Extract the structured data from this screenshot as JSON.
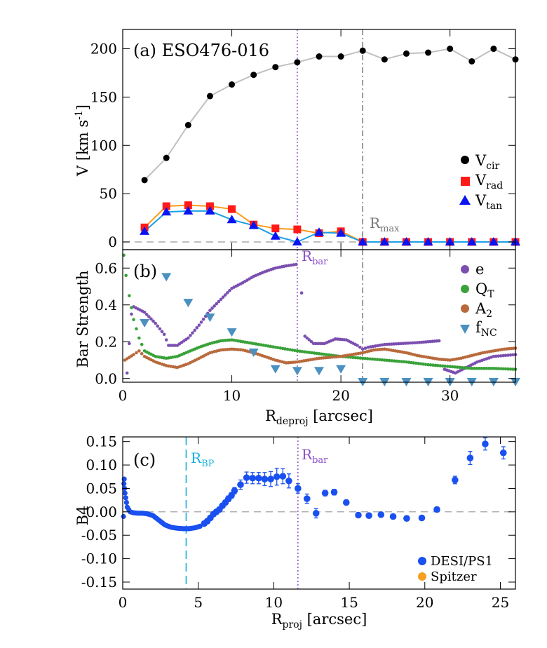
{
  "colors": {
    "vcir": "#000000",
    "vcir_line": "#c0c0c0",
    "vrad": "#ff1a1a",
    "vrad_line": "#ff9a1a",
    "vtan": "#0a14f0",
    "vtan_line": "#1aa0e6",
    "e": "#7b4fb0",
    "qt": "#3aa23a",
    "a2": "#b86a3c",
    "fnc": "#4a90c0",
    "rmax": "#777777",
    "rbar": "#8a4fc8",
    "rbp": "#18b0e0",
    "zero": "#999999",
    "desi": "#1a50f0",
    "spitzer": "#f5a020"
  },
  "chart_data": [
    {
      "type": "line",
      "panel_label": "(a) ESO476-016",
      "ylabel": "V [km s",
      "ylabel_sup": "-1",
      "ylabel_close": "]",
      "xlim": [
        0,
        36
      ],
      "ylim": [
        -8,
        220
      ],
      "yticks": [
        0,
        50,
        100,
        150,
        200
      ],
      "xticks": [
        0,
        10,
        20,
        30
      ],
      "series": [
        {
          "name": "V",
          "sub": "cir",
          "key": "vcir",
          "marker": "circle",
          "x": [
            2,
            4,
            6,
            8,
            10,
            12,
            14,
            16,
            18,
            20,
            22,
            24,
            26,
            28,
            30,
            32,
            34,
            36
          ],
          "values": [
            64,
            87,
            121,
            151,
            163,
            173,
            181,
            186,
            192,
            192,
            198,
            189,
            195,
            196,
            200,
            187,
            200,
            189
          ]
        },
        {
          "name": "V",
          "sub": "rad",
          "key": "vrad",
          "marker": "square",
          "x": [
            2,
            4,
            6,
            8,
            10,
            12,
            14,
            16,
            18,
            20,
            22,
            24,
            26,
            28,
            30,
            32,
            34,
            36
          ],
          "values": [
            15,
            37,
            38,
            37,
            34,
            18,
            14,
            13,
            9,
            11,
            0,
            0,
            0,
            0,
            0,
            0,
            0,
            0
          ]
        },
        {
          "name": "V",
          "sub": "tan",
          "key": "vtan",
          "marker": "triangle",
          "x": [
            2,
            4,
            6,
            8,
            10,
            12,
            14,
            16,
            18,
            20,
            22,
            24,
            26,
            28,
            30,
            32,
            34,
            36
          ],
          "values": [
            11,
            31,
            32,
            32,
            23,
            17,
            6,
            0,
            10,
            9,
            0,
            0,
            0,
            0,
            0,
            0,
            0,
            0
          ]
        }
      ],
      "annotations": {
        "rmax_label": "R",
        "rmax_sub": "max",
        "rmax_x": 22,
        "rbar_x": 16
      }
    },
    {
      "type": "scatter",
      "panel_label": "(b)",
      "ylabel": "Bar Strength",
      "xlabel": "R",
      "xlabel_sub": "deproj",
      "xlabel_tail": " [arcsec]",
      "xlim": [
        0,
        36
      ],
      "ylim": [
        -0.02,
        0.7
      ],
      "yticks": [
        0.0,
        0.2,
        0.4,
        0.6
      ],
      "yticklabels": [
        "0.0",
        "0.2",
        "0.4",
        "0.6"
      ],
      "xticks": [
        0,
        10,
        20,
        30
      ],
      "xticklabels": [
        "0",
        "10",
        "20",
        "30"
      ],
      "series": [
        {
          "name": "e",
          "sub": "",
          "key": "e",
          "curve": [
            [
              0.4,
              0.03
            ],
            [
              0.8,
              0.35
            ],
            [
              1,
              0.39
            ],
            [
              2,
              0.36
            ],
            [
              3,
              0.3
            ],
            [
              3.8,
              0.24
            ],
            [
              4.2,
              0.18
            ],
            [
              5,
              0.18
            ],
            [
              6,
              0.22
            ],
            [
              7,
              0.29
            ],
            [
              8,
              0.37
            ],
            [
              9,
              0.43
            ],
            [
              10,
              0.49
            ],
            [
              11,
              0.52
            ],
            [
              12,
              0.555
            ],
            [
              13,
              0.58
            ],
            [
              14,
              0.6
            ],
            [
              15,
              0.612
            ],
            [
              15.9,
              0.62
            ]
          ],
          "curve2": [
            [
              16.4,
              0.465
            ]
          ],
          "curve3": [
            [
              16.7,
              0.23
            ],
            [
              17.5,
              0.19
            ],
            [
              18.5,
              0.19
            ],
            [
              19.5,
              0.215
            ],
            [
              20.5,
              0.21
            ],
            [
              21.5,
              0.18
            ],
            [
              22,
              0.16
            ],
            [
              22.5,
              0.17
            ],
            [
              24,
              0.185
            ],
            [
              25.5,
              0.19
            ],
            [
              27,
              0.195
            ],
            [
              28,
              0.2
            ],
            [
              29,
              0.205
            ]
          ],
          "curve4": [
            [
              29.5,
              0.05
            ],
            [
              30.5,
              0.03
            ],
            [
              31.5,
              0.06
            ],
            [
              32.5,
              0.09
            ],
            [
              34,
              0.12
            ],
            [
              36,
              0.13
            ]
          ]
        },
        {
          "name": "Q",
          "sub": "T",
          "key": "qt",
          "curve": [
            [
              0.1,
              0.67
            ],
            [
              0.3,
              0.56
            ],
            [
              0.6,
              0.45
            ],
            [
              1,
              0.32
            ],
            [
              1.5,
              0.22
            ],
            [
              2,
              0.15
            ],
            [
              3,
              0.12
            ],
            [
              4,
              0.11
            ],
            [
              5,
              0.12
            ],
            [
              6,
              0.145
            ],
            [
              7,
              0.17
            ],
            [
              8,
              0.19
            ],
            [
              9,
              0.205
            ],
            [
              10,
              0.21
            ],
            [
              11,
              0.2
            ],
            [
              12,
              0.19
            ],
            [
              14,
              0.17
            ],
            [
              16,
              0.15
            ],
            [
              18,
              0.135
            ],
            [
              20,
              0.12
            ],
            [
              22,
              0.11
            ],
            [
              24,
              0.1
            ],
            [
              26,
              0.09
            ],
            [
              28,
              0.075
            ],
            [
              30,
              0.065
            ],
            [
              32,
              0.055
            ],
            [
              34,
              0.055
            ],
            [
              36,
              0.05
            ]
          ]
        },
        {
          "name": "A",
          "sub": "2",
          "key": "a2",
          "curve": [
            [
              0.2,
              0.1
            ],
            [
              1,
              0.13
            ],
            [
              1.5,
              0.15
            ],
            [
              2,
              0.12
            ],
            [
              3,
              0.09
            ],
            [
              4,
              0.07
            ],
            [
              5,
              0.06
            ],
            [
              6,
              0.08
            ],
            [
              7,
              0.11
            ],
            [
              8,
              0.14
            ],
            [
              9,
              0.155
            ],
            [
              10,
              0.16
            ],
            [
              11,
              0.155
            ],
            [
              12,
              0.14
            ],
            [
              13,
              0.12
            ],
            [
              14,
              0.1
            ],
            [
              15,
              0.085
            ],
            [
              16,
              0.09
            ],
            [
              17,
              0.1
            ],
            [
              18,
              0.11
            ],
            [
              19,
              0.115
            ],
            [
              20,
              0.12
            ],
            [
              21,
              0.13
            ],
            [
              22,
              0.14
            ],
            [
              23,
              0.155
            ],
            [
              24,
              0.16
            ],
            [
              25,
              0.15
            ],
            [
              26,
              0.14
            ],
            [
              27,
              0.125
            ],
            [
              28,
              0.115
            ],
            [
              29,
              0.105
            ],
            [
              30,
              0.1
            ],
            [
              31,
              0.11
            ],
            [
              32,
              0.125
            ],
            [
              33,
              0.14
            ],
            [
              34,
              0.15
            ],
            [
              35,
              0.16
            ],
            [
              36,
              0.165
            ]
          ]
        },
        {
          "name": "f",
          "sub": "NC",
          "key": "fnc",
          "x": [
            2,
            4,
            6,
            8,
            10,
            12,
            14,
            16,
            18,
            20,
            22,
            24,
            26,
            28,
            30,
            32,
            34,
            36
          ],
          "values": [
            0.3,
            0.55,
            0.41,
            0.33,
            0.25,
            0.14,
            0.05,
            0.04,
            0.04,
            0.05,
            -0.02,
            -0.02,
            -0.02,
            -0.02,
            -0.02,
            -0.02,
            -0.02,
            -0.02
          ]
        }
      ],
      "annotations": {
        "rbar_label": "R",
        "rbar_sub": "bar",
        "rbar_x": 16,
        "rmax_x": 22
      }
    },
    {
      "type": "scatter",
      "panel_label": "(c)",
      "ylabel": "B4",
      "xlabel": "R",
      "xlabel_sub": "proj",
      "xlabel_tail": " [arcsec]",
      "xlim": [
        0,
        26
      ],
      "ylim": [
        -0.165,
        0.16
      ],
      "yticks": [
        -0.15,
        -0.1,
        -0.05,
        0.0,
        0.05,
        0.1,
        0.15
      ],
      "yticklabels": [
        "-0.15",
        "-0.10",
        "-0.05",
        "-0.00",
        "0.05",
        "0.10",
        "0.15"
      ],
      "xticks": [
        0,
        5,
        10,
        15,
        20,
        25
      ],
      "xticklabels": [
        "0",
        "5",
        "10",
        "15",
        "20",
        "25"
      ],
      "series": [
        {
          "name": "DESI/PS1",
          "key": "desi",
          "dense": [
            [
              0.05,
              -0.01
            ],
            [
              0.08,
              0.06
            ],
            [
              0.1,
              0.07
            ],
            [
              0.12,
              0.05
            ],
            [
              0.15,
              0.04
            ],
            [
              0.2,
              0.03
            ],
            [
              0.25,
              0.02
            ],
            [
              0.3,
              0.01
            ],
            [
              0.4,
              0.005
            ],
            [
              0.5,
              0.0
            ],
            [
              0.7,
              -0.002
            ],
            [
              1,
              -0.003
            ],
            [
              1.3,
              -0.003
            ],
            [
              1.6,
              -0.004
            ],
            [
              2,
              -0.008
            ],
            [
              2.4,
              -0.018
            ],
            [
              2.8,
              -0.028
            ],
            [
              3.2,
              -0.033
            ],
            [
              3.6,
              -0.035
            ],
            [
              4,
              -0.036
            ],
            [
              4.4,
              -0.036
            ],
            [
              4.8,
              -0.034
            ],
            [
              5.2,
              -0.03
            ]
          ],
          "x": [
            5.4,
            5.6,
            5.8,
            6.0,
            6.2,
            6.4,
            6.6,
            6.8,
            7.0,
            7.2,
            7.4,
            7.8,
            8.2,
            8.6,
            9.0,
            9.4,
            9.8,
            10.2,
            10.6,
            11.0,
            11.6,
            12.2,
            12.8,
            13.4,
            14.0,
            14.8,
            15.6,
            16.3,
            17.1,
            17.9,
            18.8,
            19.8,
            20.8,
            22.0,
            23.0,
            24.0,
            25.2
          ],
          "values": [
            -0.025,
            -0.02,
            -0.013,
            -0.005,
            0.0,
            0.005,
            0.013,
            0.02,
            0.028,
            0.035,
            0.045,
            0.058,
            0.073,
            0.072,
            0.072,
            0.07,
            0.07,
            0.075,
            0.076,
            0.066,
            0.05,
            0.028,
            -0.003,
            0.04,
            0.042,
            0.02,
            -0.007,
            -0.008,
            -0.006,
            -0.01,
            -0.014,
            -0.013,
            0.005,
            0.068,
            0.115,
            0.145,
            0.126
          ],
          "err": [
            0.003,
            0.003,
            0.004,
            0.004,
            0.004,
            0.005,
            0.005,
            0.005,
            0.006,
            0.006,
            0.007,
            0.01,
            0.012,
            0.012,
            0.012,
            0.014,
            0.016,
            0.018,
            0.016,
            0.015,
            0.01,
            0.01,
            0.01,
            0.006,
            0.006,
            0.005,
            0.005,
            0.005,
            0.005,
            0.005,
            0.005,
            0.005,
            0.005,
            0.008,
            0.014,
            0.013,
            0.013
          ]
        },
        {
          "name": "Spitzer",
          "key": "spitzer",
          "x": [],
          "values": []
        }
      ],
      "annotations": {
        "rbp_label": "R",
        "rbp_sub": "BP",
        "rbp_x": 4.2,
        "rbar_label": "R",
        "rbar_sub": "bar",
        "rbar_x": 11.6
      }
    }
  ]
}
